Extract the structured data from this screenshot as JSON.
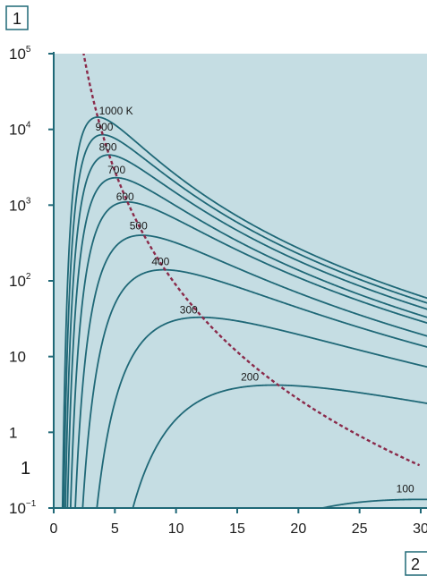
{
  "callouts": {
    "top": "1",
    "bottom": "2"
  },
  "stray_label": "1",
  "colors": {
    "plot_background": "#c5dde3",
    "axis": "#1f6877",
    "curve": "#1f6877",
    "wien_line": "#8a2a4a",
    "callout_border": "#1f6877"
  },
  "chart_data": {
    "type": "line",
    "title": "",
    "xlabel": "",
    "ylabel": "",
    "xlim": [
      0,
      30
    ],
    "ylim": [
      0.1,
      100000
    ],
    "y_scale": "log",
    "grid": false,
    "legend": "none",
    "x_ticks": [
      {
        "value": 0,
        "label": "0"
      },
      {
        "value": 5,
        "label": "5"
      },
      {
        "value": 10,
        "label": "10"
      },
      {
        "value": 15,
        "label": "15"
      },
      {
        "value": 20,
        "label": "20"
      },
      {
        "value": 25,
        "label": "25"
      },
      {
        "value": 30,
        "label": "30"
      }
    ],
    "y_ticks": [
      {
        "value": 0.1,
        "base": "10",
        "exp": "−1"
      },
      {
        "value": 1,
        "base": "1",
        "exp": ""
      },
      {
        "value": 10,
        "base": "10",
        "exp": ""
      },
      {
        "value": 100,
        "base": "10",
        "exp": "2"
      },
      {
        "value": 1000,
        "base": "10",
        "exp": "3"
      },
      {
        "value": 10000,
        "base": "10",
        "exp": "4"
      },
      {
        "value": 100000,
        "base": "10",
        "exp": "5"
      }
    ],
    "series": [
      {
        "label": "1000 K",
        "T": 1000,
        "peak": [
          3.6,
          14500
        ],
        "label_at": [
          3.7,
          15800
        ]
      },
      {
        "label": "900",
        "T": 900,
        "peak": [
          4.0,
          8500
        ],
        "label_at": [
          3.4,
          9600
        ]
      },
      {
        "label": "800",
        "T": 800,
        "peak": [
          4.5,
          4600
        ],
        "label_at": [
          3.7,
          5200
        ]
      },
      {
        "label": "700",
        "T": 700,
        "peak": [
          5.1,
          2300
        ],
        "label_at": [
          4.4,
          2600
        ]
      },
      {
        "label": "600",
        "T": 600,
        "peak": [
          6.0,
          1100
        ],
        "label_at": [
          5.1,
          1150
        ]
      },
      {
        "label": "500",
        "T": 500,
        "peak": [
          7.2,
          400
        ],
        "label_at": [
          6.2,
          480
        ]
      },
      {
        "label": "400",
        "T": 400,
        "peak": [
          9.0,
          140
        ],
        "label_at": [
          8.0,
          160
        ]
      },
      {
        "label": "300",
        "T": 300,
        "peak": [
          12.0,
          33
        ],
        "label_at": [
          10.3,
          37
        ]
      },
      {
        "label": "200",
        "T": 200,
        "peak": [
          18.0,
          4.2
        ],
        "label_at": [
          15.3,
          4.8
        ]
      },
      {
        "label": "100",
        "T": 100,
        "peak": [
          30.0,
          0.13
        ],
        "label_at": [
          28.0,
          0.16
        ]
      }
    ],
    "wien_locus": {
      "style": "dashed"
    }
  }
}
